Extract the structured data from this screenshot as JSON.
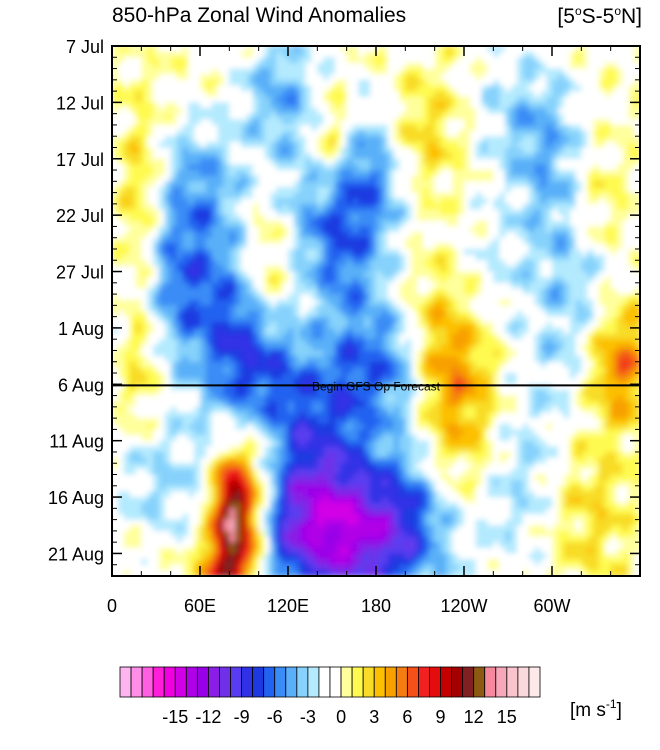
{
  "chart_data": {
    "type": "heatmap",
    "title": "850-hPa Zonal Wind Anomalies",
    "region_label": {
      "prefix": "[5",
      "deg1": "o",
      "mid": "S-5",
      "deg2": "o",
      "suffix": "N]"
    },
    "x_ticks": [
      "0",
      "60E",
      "120E",
      "180",
      "120W",
      "60W"
    ],
    "x_tick_values": [
      0,
      60,
      120,
      180,
      240,
      300
    ],
    "xlim": [
      0,
      360
    ],
    "y_ticks": [
      "7 Jul",
      "12 Jul",
      "17 Jul",
      "22 Jul",
      "27 Jul",
      "1 Aug",
      "6 Aug",
      "11 Aug",
      "16 Aug",
      "21 Aug"
    ],
    "y_tick_values": [
      0,
      5,
      10,
      15,
      20,
      25,
      30,
      35,
      40,
      45
    ],
    "ylim": [
      0,
      47
    ],
    "annotation": {
      "text": "Begin GFS Op Forecast",
      "day": 30.1,
      "x": 180
    },
    "colorbar": {
      "levels": [
        -17,
        -16,
        -15,
        -14,
        -13,
        -12,
        -11,
        -10,
        -9,
        -8,
        -7,
        -6,
        -5,
        -4,
        -3,
        -2,
        -1,
        0,
        1,
        2,
        3,
        4,
        5,
        6,
        7,
        8,
        9,
        10,
        11,
        12,
        13,
        14,
        15,
        16
      ],
      "colors": [
        "#ffb6f0",
        "#ff8ee8",
        "#ff5fe0",
        "#ff1fd8",
        "#f000e0",
        "#d200e6",
        "#b000e8",
        "#9a00e8",
        "#8a1ee6",
        "#7030e8",
        "#5a3cf0",
        "#3030e6",
        "#1c3ae0",
        "#2262f0",
        "#3a8cf6",
        "#5ab0f8",
        "#86d2fc",
        "#b4eafe",
        "#ffffff",
        "#ffffff",
        "#ffff9c",
        "#fffa50",
        "#f8dc28",
        "#fcc000",
        "#f8a000",
        "#f47c10",
        "#f45018",
        "#f22020",
        "#e40c0c",
        "#c40000",
        "#a40000",
        "#802020",
        "#8c5a10",
        "#f5889c",
        "#f7a8b8",
        "#f9c4cc",
        "#fbd8dc",
        "#fde8ea"
      ],
      "tick_labels": [
        "-15",
        "-12",
        "-9",
        "-6",
        "-3",
        "0",
        "3",
        "6",
        "9",
        "12",
        "15"
      ],
      "units_text": "[m s",
      "units_exp": "-1",
      "units_close": "]"
    }
  }
}
